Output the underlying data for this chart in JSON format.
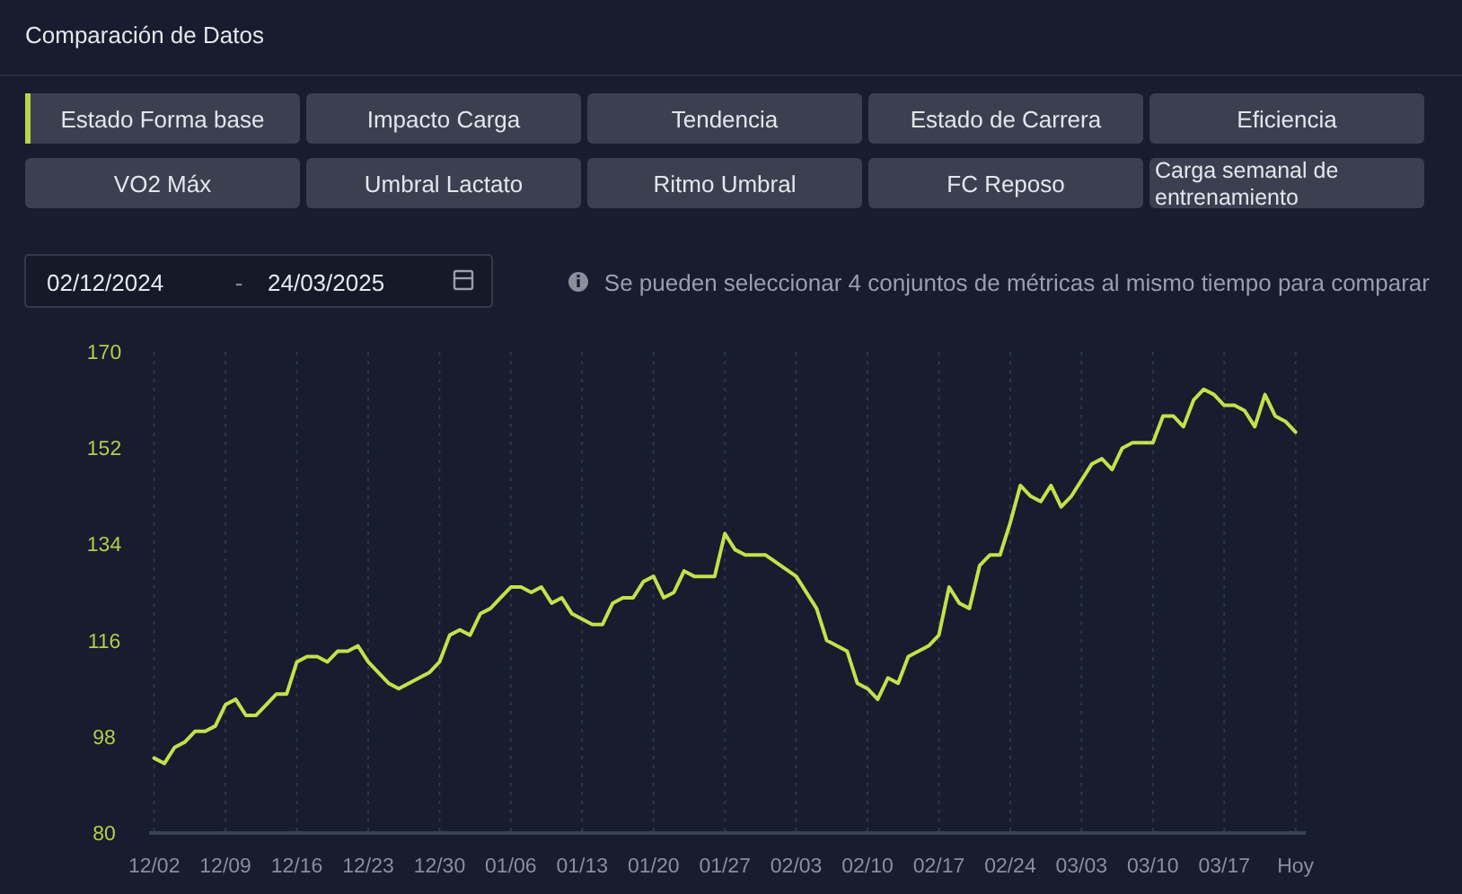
{
  "chart_data": {
    "type": "line",
    "title": "Comparación de Datos",
    "annotations": [
      "Estado Forma base",
      "Impacto Carga",
      "Tendencia",
      "Estado de Carrera",
      "Eficiencia",
      "VO2 Máx",
      "Umbral Lactato",
      "Ritmo Umbral",
      "FC Reposo",
      "Carga semanal de entrenamiento",
      "02/12/2024",
      "-",
      "24/03/2025",
      "Se pueden seleccionar 4 conjuntos de métricas al mismo tiempo para comparar"
    ],
    "x": [
      "2024-12-02",
      "2024-12-03",
      "2024-12-04",
      "2024-12-05",
      "2024-12-06",
      "2024-12-07",
      "2024-12-08",
      "2024-12-09",
      "2024-12-10",
      "2024-12-11",
      "2024-12-12",
      "2024-12-13",
      "2024-12-14",
      "2024-12-15",
      "2024-12-16",
      "2024-12-17",
      "2024-12-18",
      "2024-12-19",
      "2024-12-20",
      "2024-12-21",
      "2024-12-22",
      "2024-12-23",
      "2024-12-25",
      "2024-12-26",
      "2024-12-28",
      "2024-12-29",
      "2024-12-30",
      "2024-12-31",
      "2025-01-01",
      "2025-01-02",
      "2025-01-03",
      "2025-01-04",
      "2025-01-05",
      "2025-01-06",
      "2025-01-07",
      "2025-01-08",
      "2025-01-09",
      "2025-01-10",
      "2025-01-11",
      "2025-01-12",
      "2025-01-13",
      "2025-01-14",
      "2025-01-15",
      "2025-01-16",
      "2025-01-17",
      "2025-01-18",
      "2025-01-19",
      "2025-01-20",
      "2025-01-21",
      "2025-01-22",
      "2025-01-23",
      "2025-01-24",
      "2025-01-26",
      "2025-01-27",
      "2025-01-28",
      "2025-01-29",
      "2025-01-31",
      "2025-02-03",
      "2025-02-05",
      "2025-02-06",
      "2025-02-08",
      "2025-02-09",
      "2025-02-10",
      "2025-02-11",
      "2025-02-12",
      "2025-02-13",
      "2025-02-14",
      "2025-02-15",
      "2025-02-16",
      "2025-02-17",
      "2025-02-18",
      "2025-02-19",
      "2025-02-20",
      "2025-02-21",
      "2025-02-22",
      "2025-02-23",
      "2025-02-24",
      "2025-02-25",
      "2025-02-26",
      "2025-02-27",
      "2025-02-28",
      "2025-03-01",
      "2025-03-02",
      "2025-03-04",
      "2025-03-05",
      "2025-03-06",
      "2025-03-07",
      "2025-03-08",
      "2025-03-09",
      "2025-03-10",
      "2025-03-11",
      "2025-03-12",
      "2025-03-13",
      "2025-03-14",
      "2025-03-15",
      "2025-03-16",
      "2025-03-17",
      "2025-03-18",
      "2025-03-19",
      "2025-03-20",
      "2025-03-21",
      "2025-03-22",
      "2025-03-23",
      "2025-03-24"
    ],
    "series": [
      {
        "color": "#c3e14b",
        "values": [
          94,
          93,
          96,
          97,
          99,
          99,
          100,
          104,
          105,
          102,
          102,
          104,
          106,
          106,
          112,
          113,
          113,
          112,
          114,
          114,
          115,
          112,
          108,
          107,
          109,
          110,
          112,
          117,
          118,
          117,
          121,
          122,
          124,
          126,
          126,
          125,
          126,
          123,
          124,
          121,
          120,
          119,
          119,
          123,
          124,
          124,
          127,
          128,
          124,
          125,
          129,
          128,
          128,
          136,
          133,
          132,
          132,
          128,
          122,
          116,
          114,
          108,
          107,
          105,
          109,
          108,
          113,
          114,
          115,
          117,
          126,
          123,
          122,
          130,
          132,
          132,
          138,
          145,
          143,
          142,
          145,
          141,
          143,
          149,
          150,
          148,
          152,
          153,
          153,
          153,
          158,
          158,
          156,
          161,
          163,
          162,
          160,
          160,
          159,
          156,
          162,
          158,
          157,
          155
        ]
      }
    ],
    "xlim": [
      "2024-12-01T12:00",
      "2025-03-25"
    ],
    "xticks": [
      {
        "value": "2024-12-02",
        "label": "12/02"
      },
      {
        "value": "2024-12-09",
        "label": "12/09"
      },
      {
        "value": "2024-12-16",
        "label": "12/16"
      },
      {
        "value": "2024-12-23",
        "label": "12/23"
      },
      {
        "value": "2024-12-30",
        "label": "12/30"
      },
      {
        "value": "2025-01-06",
        "label": "01/06"
      },
      {
        "value": "2025-01-13",
        "label": "01/13"
      },
      {
        "value": "2025-01-20",
        "label": "01/20"
      },
      {
        "value": "2025-01-27",
        "label": "01/27"
      },
      {
        "value": "2025-02-03",
        "label": "02/03"
      },
      {
        "value": "2025-02-10",
        "label": "02/10"
      },
      {
        "value": "2025-02-17",
        "label": "02/17"
      },
      {
        "value": "2025-02-24",
        "label": "02/24"
      },
      {
        "value": "2025-03-03",
        "label": "03/03"
      },
      {
        "value": "2025-03-10",
        "label": "03/10"
      },
      {
        "value": "2025-03-17",
        "label": "03/17"
      },
      {
        "value": "2025-03-24",
        "label": "Hoy"
      }
    ],
    "ylim": [
      80,
      170
    ],
    "yticks": [
      80,
      98,
      116,
      134,
      152,
      170
    ],
    "grid": "x",
    "marker": "none",
    "line_style": "solid"
  }
}
